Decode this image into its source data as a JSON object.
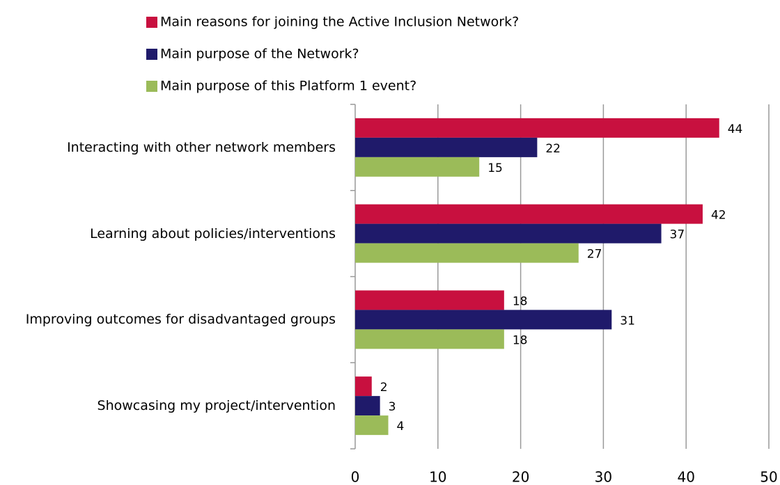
{
  "chart_data": {
    "type": "hbar",
    "categories": [
      "Interacting with other network members",
      "Learning about policies/interventions",
      "Improving outcomes for disadvantaged groups",
      "Showcasing my project/intervention"
    ],
    "series": [
      {
        "name": "Main reasons for joining the Active Inclusion Network?",
        "color": "#c8103f",
        "values": [
          44,
          42,
          18,
          2
        ]
      },
      {
        "name": "Main purpose of the Network?",
        "color": "#1f1a6a",
        "values": [
          22,
          37,
          31,
          3
        ]
      },
      {
        "name": "Main purpose of this Platform 1 event?",
        "color": "#9bbb59",
        "values": [
          15,
          27,
          18,
          4
        ]
      }
    ],
    "xlim": [
      0,
      50
    ],
    "xticks": [
      0,
      10,
      20,
      30,
      40,
      50
    ],
    "grid": true
  }
}
